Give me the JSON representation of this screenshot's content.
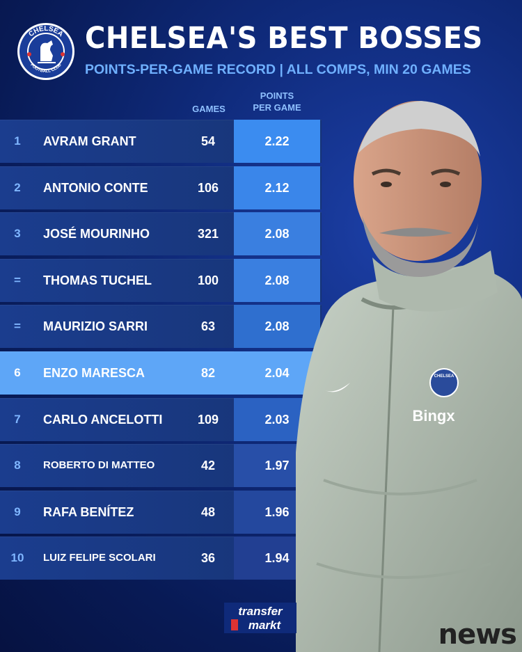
{
  "header": {
    "title": "CHELSEA'S BEST BOSSES",
    "subtitle": "POINTS-PER-GAME RECORD | ALL COMPS, MIN 20 GAMES"
  },
  "crest": {
    "top_text": "CHELSEA",
    "bottom_text": "FOOTBALL CLUB"
  },
  "columns": {
    "games": "GAMES",
    "ppg_line1": "POINTS",
    "ppg_line2": "PER GAME"
  },
  "rows": [
    {
      "rank": "1",
      "name": "AVRAM GRANT",
      "games": "54",
      "ppg": "2.22"
    },
    {
      "rank": "2",
      "name": "ANTONIO CONTE",
      "games": "106",
      "ppg": "2.12"
    },
    {
      "rank": "3",
      "name": "JOSÉ MOURINHO",
      "games": "321",
      "ppg": "2.08"
    },
    {
      "rank": "=",
      "name": "THOMAS TUCHEL",
      "games": "100",
      "ppg": "2.08"
    },
    {
      "rank": "=",
      "name": "MAURIZIO SARRI",
      "games": "63",
      "ppg": "2.08"
    },
    {
      "rank": "6",
      "name": "ENZO MARESCA",
      "games": "82",
      "ppg": "2.04"
    },
    {
      "rank": "7",
      "name": "CARLO ANCELOTTI",
      "games": "109",
      "ppg": "2.03"
    },
    {
      "rank": "8",
      "name": "ROBERTO DI MATTEO",
      "games": "42",
      "ppg": "1.97"
    },
    {
      "rank": "9",
      "name": "RAFA BENÍTEZ",
      "games": "48",
      "ppg": "1.96"
    },
    {
      "rank": "10",
      "name": "LUIZ FELIPE SCOLARI",
      "games": "36",
      "ppg": "1.94"
    }
  ],
  "photo_jacket": {
    "club": "CHELSEA",
    "sponsor": "Bingx"
  },
  "branding": {
    "source_line1": "transfer",
    "source_line2": "markt",
    "watermark": "news"
  },
  "colors": {
    "highlight": "#5ea6f7",
    "accent": "#6fb0ff",
    "background": "#0f2a7a"
  }
}
